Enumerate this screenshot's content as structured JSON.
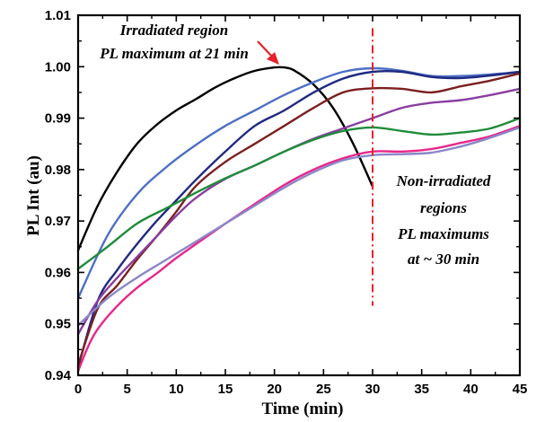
{
  "chart_data": {
    "type": "line",
    "title": "",
    "xlabel": "Time (min)",
    "ylabel": "PL Int (au)",
    "xlim": [
      0,
      45
    ],
    "ylim": [
      0.94,
      1.01
    ],
    "xticks": [
      "0",
      "5",
      "10",
      "15",
      "20",
      "25",
      "30",
      "35",
      "40",
      "45"
    ],
    "yticks": [
      "0.94",
      "0.95",
      "0.96",
      "0.97",
      "0.98",
      "0.99",
      "1.00",
      "1.01"
    ],
    "grid": false,
    "legend": "none",
    "vertical_marker": {
      "x": 30,
      "y_from": 0.9535,
      "y_to": 1.0075,
      "color": "#e8202a"
    },
    "annotations": {
      "irradiated": [
        "Irradiated region",
        "PL maximum at 21 min"
      ],
      "non_irradiated": [
        "Non-irradiated",
        "regions",
        "PL maximums",
        "at ~ 30 min"
      ]
    },
    "arrow_color": "#e8202a",
    "series": [
      {
        "color": "#000000",
        "x": [
          0,
          2,
          4,
          6,
          8,
          10,
          12,
          14,
          16,
          18,
          20,
          21,
          22,
          24,
          26,
          28,
          30
        ],
        "y": [
          0.9643,
          0.973,
          0.9796,
          0.985,
          0.9887,
          0.9915,
          0.9937,
          0.996,
          0.9978,
          0.9992,
          0.99985,
          0.99985,
          0.9993,
          0.9965,
          0.9919,
          0.9851,
          0.9767
        ]
      },
      {
        "color": "#4e6fc5",
        "x": [
          0,
          3,
          6,
          9,
          12,
          15,
          18,
          21,
          24,
          27,
          30,
          33,
          36,
          39,
          42,
          45
        ],
        "y": [
          0.955,
          0.9672,
          0.9752,
          0.9805,
          0.9848,
          0.9885,
          0.9915,
          0.9945,
          0.997,
          0.999,
          0.9997,
          0.9992,
          0.9982,
          0.9982,
          0.9985,
          0.999
        ]
      },
      {
        "color": "#202a80",
        "x": [
          0,
          2,
          4,
          6,
          8,
          10,
          12,
          15,
          18,
          21,
          24,
          27,
          30,
          33,
          36,
          39,
          42,
          45
        ],
        "y": [
          0.9415,
          0.9545,
          0.9605,
          0.9655,
          0.97,
          0.974,
          0.978,
          0.9835,
          0.9885,
          0.9915,
          0.995,
          0.9977,
          0.999,
          0.999,
          0.998,
          0.9978,
          0.9983,
          0.999
        ]
      },
      {
        "color": "#7b1f1f",
        "x": [
          0,
          2,
          4,
          6,
          8,
          10,
          12,
          15,
          18,
          21,
          24,
          27,
          30,
          33,
          36,
          39,
          42,
          45
        ],
        "y": [
          0.942,
          0.953,
          0.9575,
          0.9625,
          0.967,
          0.9718,
          0.9768,
          0.9815,
          0.985,
          0.9885,
          0.992,
          0.995,
          0.9958,
          0.9957,
          0.995,
          0.9962,
          0.9973,
          0.9987
        ]
      },
      {
        "color": "#8a3ea0",
        "x": [
          0,
          2,
          4,
          6,
          8,
          10,
          12,
          15,
          18,
          21,
          24,
          27,
          30,
          33,
          36,
          39,
          42,
          45
        ],
        "y": [
          0.948,
          0.9545,
          0.959,
          0.963,
          0.967,
          0.971,
          0.9745,
          0.9782,
          0.9808,
          0.9835,
          0.986,
          0.988,
          0.99,
          0.992,
          0.993,
          0.9935,
          0.9945,
          0.9957
        ]
      },
      {
        "color": "#1e8c3a",
        "x": [
          0,
          3,
          6,
          9,
          12,
          15,
          18,
          21,
          24,
          27,
          30,
          33,
          36,
          39,
          42,
          45
        ],
        "y": [
          0.9607,
          0.965,
          0.9695,
          0.9725,
          0.9755,
          0.9783,
          0.9808,
          0.9835,
          0.9858,
          0.9875,
          0.9882,
          0.9875,
          0.9868,
          0.9872,
          0.988,
          0.99
        ]
      },
      {
        "color": "#e8278a",
        "x": [
          0,
          1,
          2,
          4,
          6,
          8,
          10,
          12,
          15,
          18,
          21,
          24,
          27,
          30,
          33,
          36,
          39,
          42,
          45
        ],
        "y": [
          0.9408,
          0.9455,
          0.949,
          0.9535,
          0.957,
          0.9598,
          0.9628,
          0.9655,
          0.9695,
          0.9733,
          0.977,
          0.98,
          0.9822,
          0.9835,
          0.9835,
          0.984,
          0.9852,
          0.9865,
          0.9885
        ]
      },
      {
        "color": "#8a87c8",
        "x": [
          0,
          3,
          6,
          9,
          12,
          15,
          18,
          21,
          24,
          27,
          30,
          33,
          36,
          39,
          42,
          45
        ],
        "y": [
          0.9497,
          0.955,
          0.959,
          0.9625,
          0.966,
          0.9695,
          0.973,
          0.9765,
          0.9795,
          0.9818,
          0.9828,
          0.983,
          0.9833,
          0.9845,
          0.9862,
          0.9882
        ]
      }
    ]
  }
}
